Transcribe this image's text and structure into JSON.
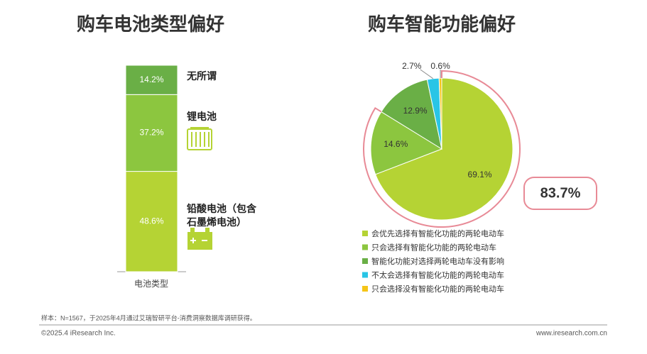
{
  "chart_data": [
    {
      "type": "stacked-bar",
      "title": "购车电池类型偏好",
      "categories": [
        "电池类型"
      ],
      "series": [
        {
          "name": "铅酸电池（包含石墨烯电池）",
          "color": "#b5d334",
          "values": [
            48.6
          ],
          "value_labels": [
            "48.6%"
          ]
        },
        {
          "name": "锂电池",
          "color": "#8cc63f",
          "values": [
            37.2
          ],
          "value_labels": [
            "37.2%"
          ]
        },
        {
          "name": "无所谓",
          "color": "#6aaf46",
          "values": [
            14.2
          ],
          "value_labels": [
            "14.2%"
          ]
        }
      ]
    },
    {
      "type": "pie",
      "title": "购车智能功能偏好",
      "categories": [
        "会优先选择有智能化功能的两轮电动车",
        "只会选择有智能化功能的两轮电动车",
        "智能化功能对选择两轮电动车没有影响",
        "不太会选择有智能化功能的两轮电动车",
        "只会选择没有智能化功能的两轮电动车"
      ],
      "values": [
        69.1,
        14.6,
        12.9,
        2.7,
        0.6
      ],
      "value_labels": [
        "69.1%",
        "14.6%",
        "12.9%",
        "2.7%",
        "0.6%"
      ],
      "colors": [
        "#b5d334",
        "#8cc63f",
        "#6aaf46",
        "#29c5e6",
        "#f5c518"
      ],
      "annotation": "83.7%"
    }
  ],
  "footer": {
    "note": "样本：N=1567，于2025年4月通过艾瑞智研平台-消费洞察数据库调研获得。",
    "copyright": "©2025.4 iResearch Inc.",
    "url": "www.iresearch.com.cn"
  }
}
